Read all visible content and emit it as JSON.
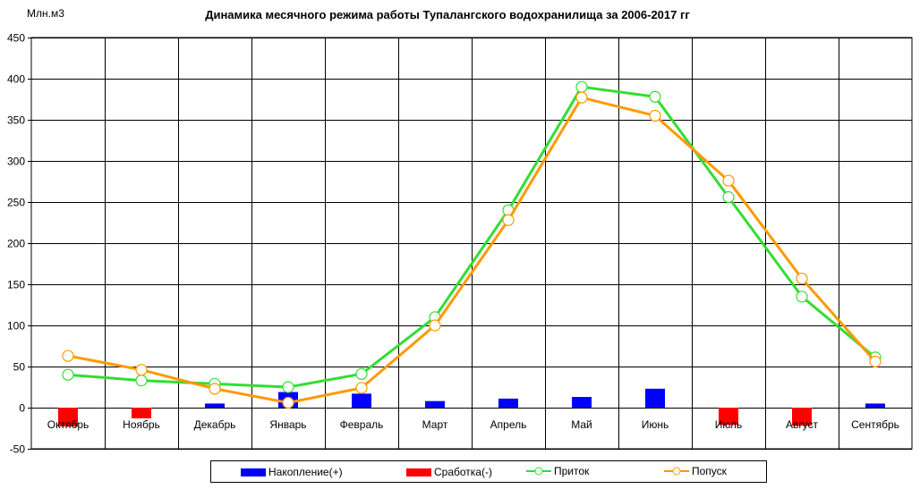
{
  "chart_data": {
    "type": "bar+line",
    "title": "Динамика месячного режима работы Тупалангского водохранилища за 2006-2017 гг",
    "ylabel": "Млн.м3",
    "ylim": [
      -50,
      450
    ],
    "yticks": [
      -50,
      0,
      50,
      100,
      150,
      200,
      250,
      300,
      350,
      400,
      450
    ],
    "grid": true,
    "legend_position": "bottom",
    "categories": [
      "Октябрь",
      "Ноябрь",
      "Декабрь",
      "Январь",
      "Февраль",
      "Март",
      "Апрель",
      "Май",
      "Июнь",
      "Июль",
      "Август",
      "Сентябрь"
    ],
    "series": [
      {
        "name": "Накопление(+)",
        "kind": "bar",
        "color": "#0000ff",
        "values": [
          0,
          0,
          5,
          19,
          17,
          8,
          11,
          13,
          23,
          0,
          0,
          5
        ]
      },
      {
        "name": "Сработка(-)",
        "kind": "bar",
        "color": "#ff0000",
        "values": [
          -23,
          -13,
          0,
          0,
          0,
          0,
          0,
          0,
          0,
          -21,
          -22,
          0
        ]
      },
      {
        "name": "Приток",
        "kind": "line",
        "color": "#33dd33",
        "values": [
          40,
          33,
          29,
          25,
          41,
          110,
          240,
          390,
          378,
          256,
          135,
          61
        ]
      },
      {
        "name": "Попуск",
        "kind": "line",
        "color": "#ff9900",
        "values": [
          63,
          46,
          23,
          6,
          24,
          100,
          228,
          377,
          355,
          276,
          157,
          56
        ]
      }
    ]
  }
}
